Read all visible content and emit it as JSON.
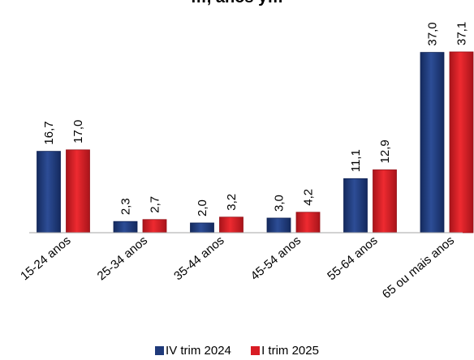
{
  "chart_data": {
    "type": "bar",
    "title": "…, anos y…",
    "categories": [
      "15-24 anos",
      "25-34 anos",
      "35-44 anos",
      "45-54 anos",
      "55-64 anos",
      "65 ou mais anos"
    ],
    "series": [
      {
        "name": "IV trim 2024",
        "color": "#1f3a7a",
        "values": [
          16.7,
          2.3,
          2.0,
          3.0,
          11.1,
          37.0
        ],
        "labels": [
          "16,7",
          "2,3",
          "2,0",
          "3,0",
          "11,1",
          "37,0"
        ]
      },
      {
        "name": "I trim 2025",
        "color": "#d81c24",
        "values": [
          17.0,
          2.7,
          3.2,
          4.2,
          12.9,
          37.1
        ],
        "labels": [
          "17,0",
          "2,7",
          "3,2",
          "4,2",
          "12,9",
          "37,1"
        ]
      }
    ],
    "ylim": [
      0,
      37.1
    ],
    "grid": false,
    "legend": "bottom"
  }
}
